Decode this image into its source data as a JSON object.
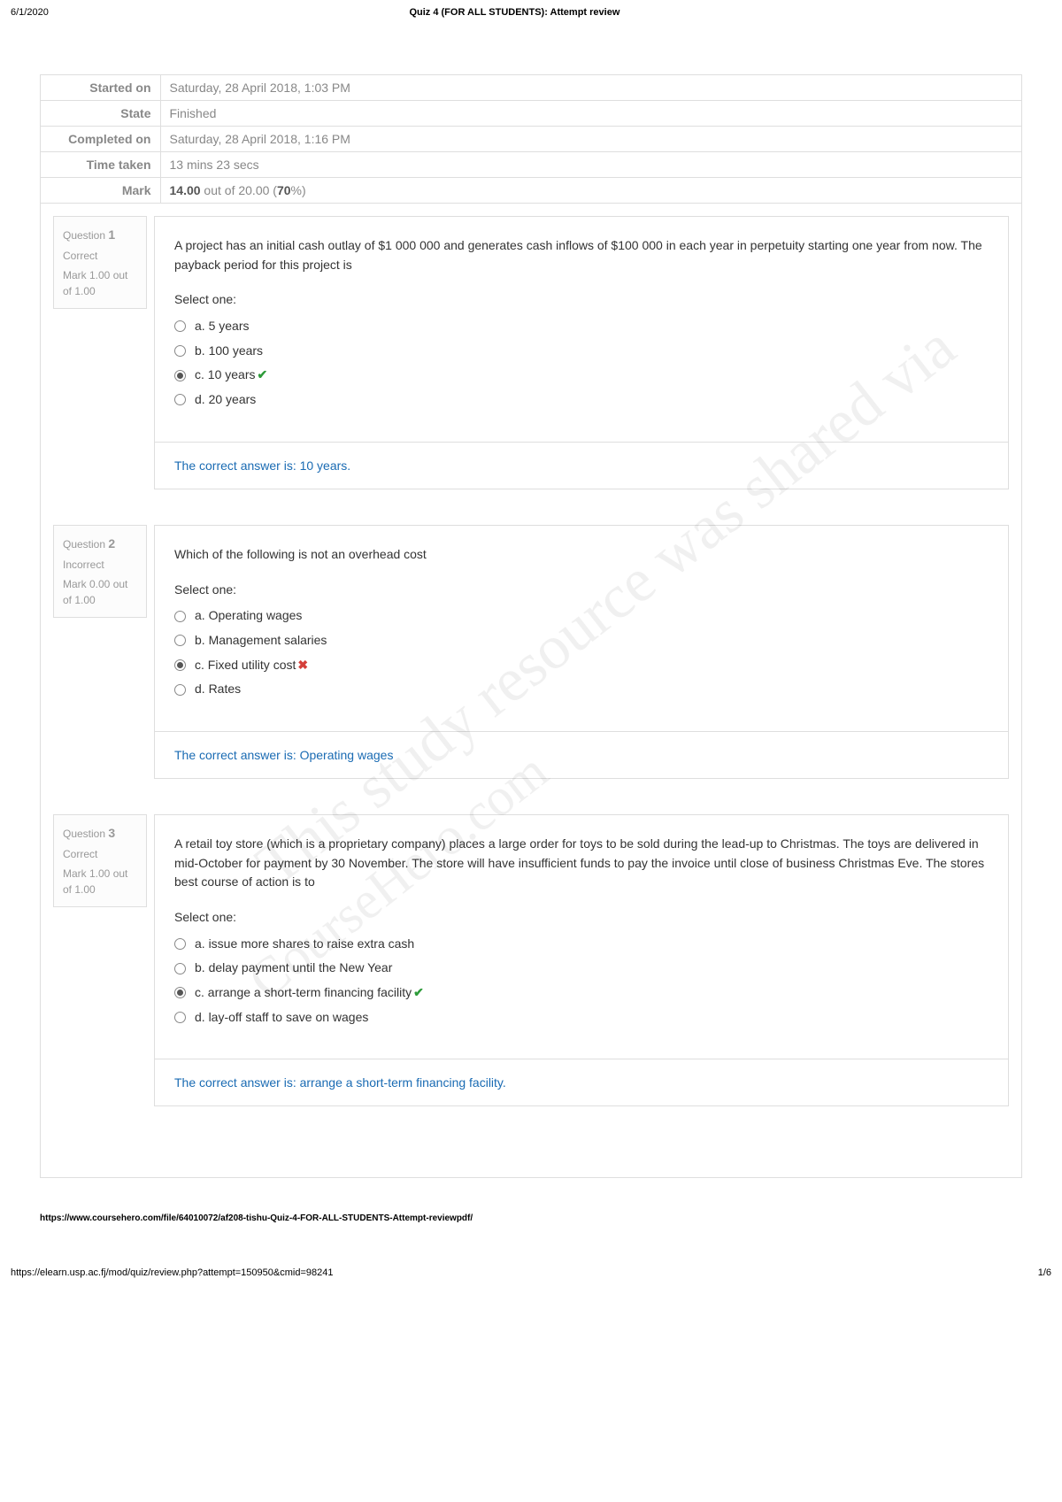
{
  "header": {
    "date": "6/1/2020",
    "title": "Quiz 4 (FOR ALL STUDENTS): Attempt review"
  },
  "summary": {
    "rows": [
      {
        "label": "Started on",
        "value": "Saturday, 28 April 2018, 1:03 PM"
      },
      {
        "label": "State",
        "value": "Finished"
      },
      {
        "label": "Completed on",
        "value": "Saturday, 28 April 2018, 1:16 PM"
      },
      {
        "label": "Time taken",
        "value": "13 mins 23 secs"
      }
    ],
    "mark_label": "Mark",
    "mark_value_bold": "14.00",
    "mark_value_mid": " out of 20.00 (",
    "mark_value_pct": "70",
    "mark_value_end": "%)"
  },
  "questions": [
    {
      "number": "1",
      "state": "Correct",
      "mark": "Mark 1.00 out of 1.00",
      "text": "A project has an initial cash outlay of $1 000 000 and generates cash inflows of $100 000 in each year in perpetuity starting one year from now. The payback period for this project is",
      "select_one": "Select one:",
      "options": [
        {
          "label": "a. 5 years",
          "selected": false,
          "correct": false,
          "wrong": false
        },
        {
          "label": "b. 100 years",
          "selected": false,
          "correct": false,
          "wrong": false
        },
        {
          "label": "c. 10 years",
          "selected": true,
          "correct": true,
          "wrong": false
        },
        {
          "label": "d. 20 years",
          "selected": false,
          "correct": false,
          "wrong": false
        }
      ],
      "feedback": "The correct answer is: 10 years."
    },
    {
      "number": "2",
      "state": "Incorrect",
      "mark": "Mark 0.00 out of 1.00",
      "text": "Which of the following is not an overhead cost",
      "select_one": "Select one:",
      "options": [
        {
          "label": "a. Operating wages",
          "selected": false,
          "correct": false,
          "wrong": false
        },
        {
          "label": "b. Management salaries",
          "selected": false,
          "correct": false,
          "wrong": false
        },
        {
          "label": "c. Fixed utility cost",
          "selected": true,
          "correct": false,
          "wrong": true
        },
        {
          "label": "d. Rates",
          "selected": false,
          "correct": false,
          "wrong": false
        }
      ],
      "feedback": "The correct answer is: Operating wages"
    },
    {
      "number": "3",
      "state": "Correct",
      "mark": "Mark 1.00 out of 1.00",
      "text": "A retail toy store (which is a proprietary company) places a large order for toys to be sold during the lead-up to Christmas. The toys are delivered in mid-October for payment by 30 November. The store will have insufficient funds to pay the invoice until close of business Christmas Eve. The stores best course of action is to",
      "select_one": "Select one:",
      "options": [
        {
          "label": "a. issue more shares to raise extra cash",
          "selected": false,
          "correct": false,
          "wrong": false
        },
        {
          "label": "b. delay payment until the New Year",
          "selected": false,
          "correct": false,
          "wrong": false
        },
        {
          "label": "c. arrange a short-term financing facility",
          "selected": true,
          "correct": true,
          "wrong": false
        },
        {
          "label": "d. lay-off staff to save on wages",
          "selected": false,
          "correct": false,
          "wrong": false
        }
      ],
      "feedback": "The correct answer is: arrange a short-term financing facility."
    }
  ],
  "watermarks": {
    "wm1": "This study resource was shared via",
    "wm2": "CourseHero.com"
  },
  "footer_src": "https://www.coursehero.com/file/64010072/af208-tishu-Quiz-4-FOR-ALL-STUDENTS-Attempt-reviewpdf/",
  "footer": {
    "url": "https://elearn.usp.ac.fj/mod/quiz/review.php?attempt=150950&cmid=98241",
    "page": "1/6"
  },
  "question_label": "Question"
}
